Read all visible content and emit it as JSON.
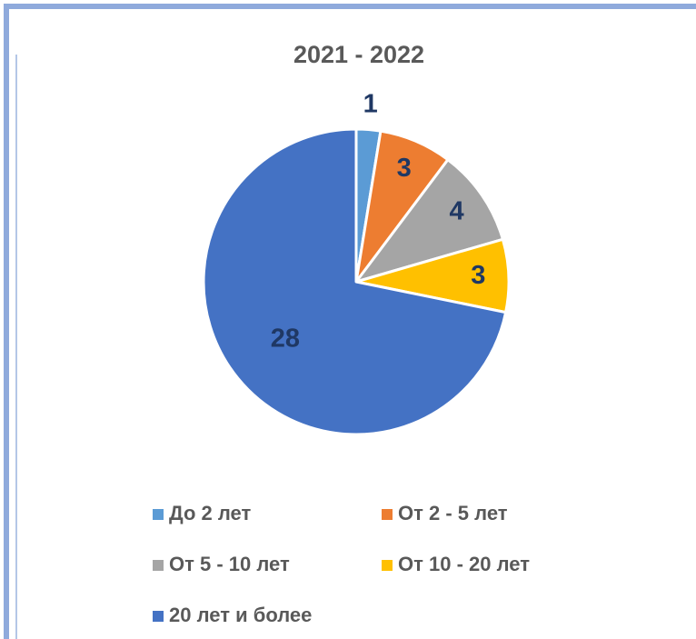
{
  "chart_data": {
    "type": "pie",
    "title": "2021 - 2022",
    "categories": [
      "До 2 лет",
      "От 2 - 5 лет",
      "От 5 - 10 лет",
      "От 10 - 20 лет",
      "20 лет и более"
    ],
    "values": [
      1,
      3,
      4,
      3,
      28
    ],
    "colors": [
      "#5b9bd5",
      "#ed7d31",
      "#a5a5a5",
      "#ffc000",
      "#4472c4"
    ],
    "legend": "bottom"
  }
}
